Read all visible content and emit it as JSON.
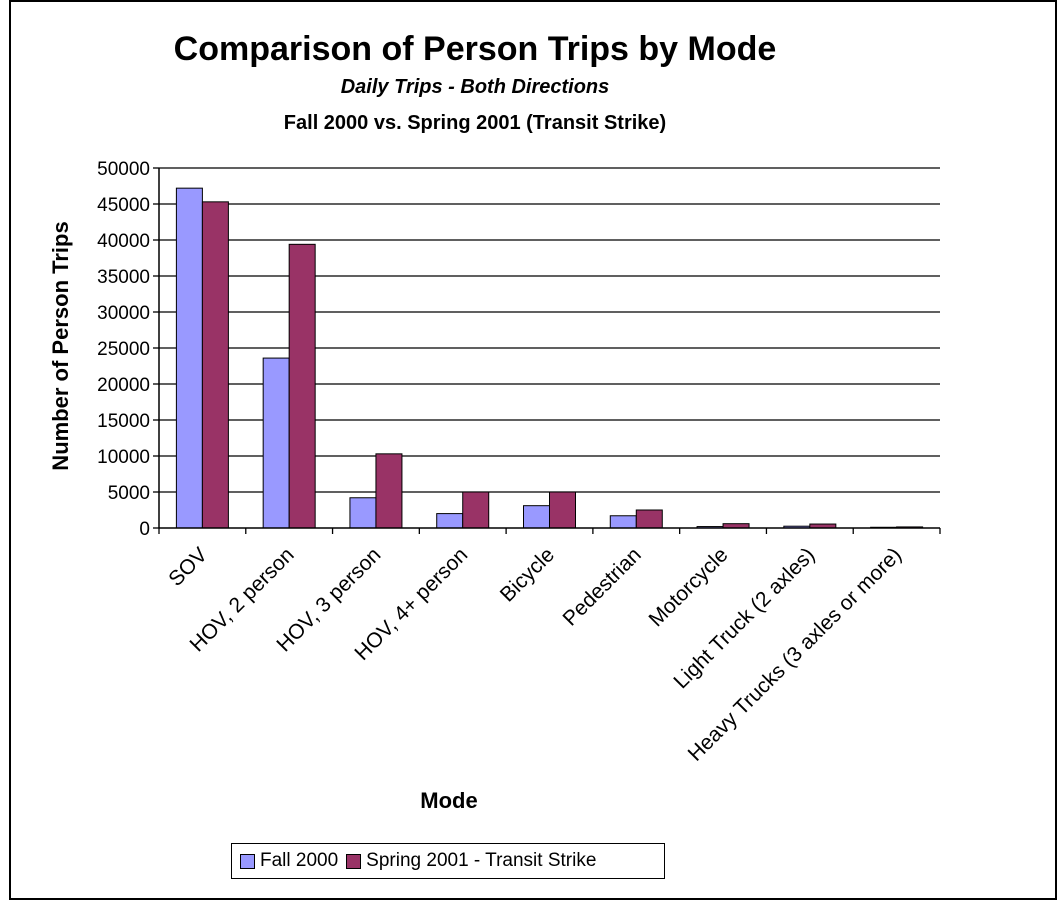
{
  "chart_data": {
    "type": "bar",
    "title": "Comparison of Person Trips by Mode",
    "subtitle": "Daily Trips - Both Directions",
    "subtitle2": "Fall 2000 vs. Spring 2001 (Transit Strike)",
    "xlabel": "Mode",
    "ylabel": "Number of Person Trips",
    "ylim": [
      0,
      50000
    ],
    "yticks": [
      0,
      5000,
      10000,
      15000,
      20000,
      25000,
      30000,
      35000,
      40000,
      45000,
      50000
    ],
    "grid": true,
    "legend_position": "bottom",
    "categories": [
      "SOV",
      "HOV, 2 person",
      "HOV, 3 person",
      "HOV, 4+ person",
      "Bicycle",
      "Pedestrian",
      "Motorcycle",
      "Light Truck (2 axles)",
      "Heavy Trucks (3 axles or more)"
    ],
    "series": [
      {
        "name": "Fall 2000",
        "color": "#9999ff",
        "values": [
          47200,
          23600,
          4200,
          2000,
          3100,
          1700,
          200,
          250,
          100
        ]
      },
      {
        "name": "Spring 2001 - Transit Strike",
        "color": "#993366",
        "values": [
          45300,
          39400,
          10300,
          5000,
          5000,
          2500,
          600,
          550,
          150
        ]
      }
    ]
  }
}
